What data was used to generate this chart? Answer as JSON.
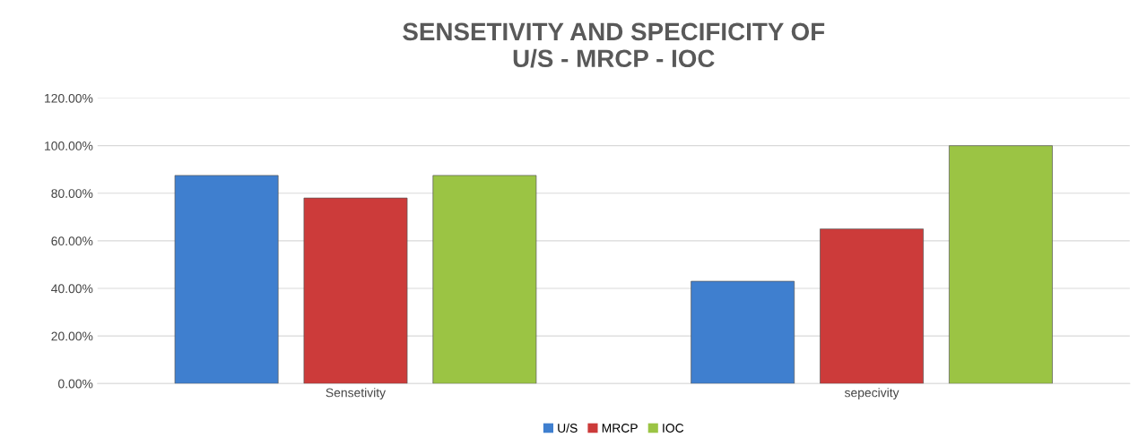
{
  "chart_data": {
    "type": "bar",
    "title": "SENSETIVITY AND SPECIFICITY OF\nU/S - MRCP - IOC",
    "categories": [
      "Sensetivity",
      "sepecivity"
    ],
    "series": [
      {
        "name": "U/S",
        "color": "#3f7fcf",
        "values": [
          87.5,
          43
        ]
      },
      {
        "name": "MRCP",
        "color": "#cc3b3a",
        "values": [
          78,
          65
        ]
      },
      {
        "name": "IOC",
        "color": "#9bc444",
        "values": [
          87.5,
          100
        ]
      }
    ],
    "ylim": [
      0,
      120
    ],
    "yticks": [
      {
        "value": 0,
        "label": "0.00%"
      },
      {
        "value": 20,
        "label": "20.00%"
      },
      {
        "value": 40,
        "label": "40.00%"
      },
      {
        "value": 60,
        "label": "60.00%"
      },
      {
        "value": 80,
        "label": "80.00%"
      },
      {
        "value": 100,
        "label": "100.00%"
      },
      {
        "value": 120,
        "label": "120.00%"
      }
    ],
    "grid": "y",
    "legend": "bottom"
  }
}
